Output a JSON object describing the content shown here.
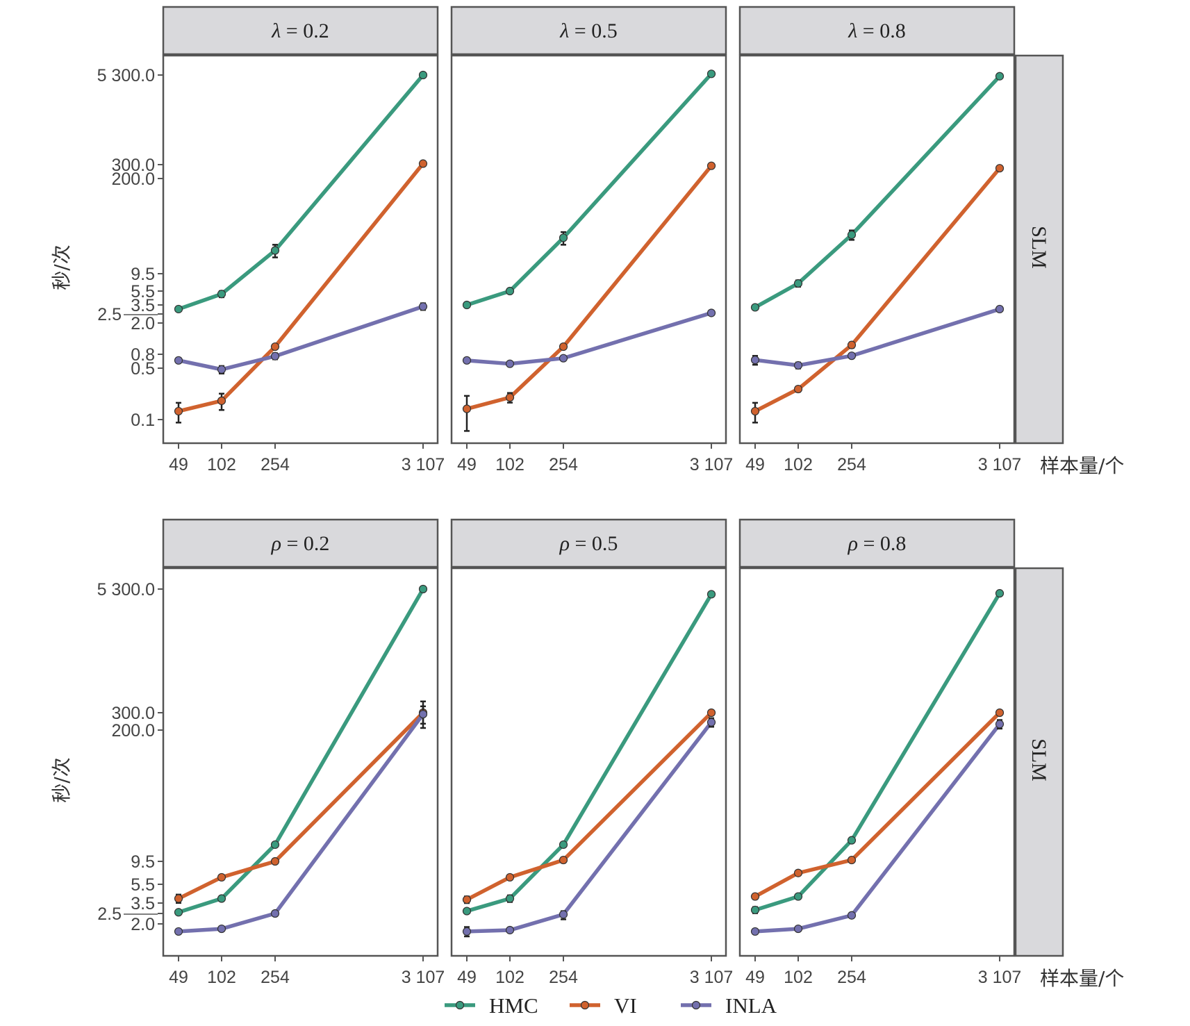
{
  "chart_data": {
    "type": "line",
    "ylabel": "秒/次",
    "xlabel": "样本量/个",
    "x_ticks": [
      "49",
      "102",
      "254",
      "3 107"
    ],
    "x_values": [
      49,
      102,
      254,
      3107
    ],
    "row_label": "SLM",
    "legend_position": "bottom",
    "series_colors": {
      "HMC": "#3a9a7e",
      "VI": "#d0622e",
      "INLA": "#7370ae"
    },
    "legend": [
      "HMC",
      "VI",
      "INLA"
    ],
    "panels": [
      {
        "greek": "λ",
        "param": "= 0.2",
        "row": 0,
        "col": 0,
        "y_ticks": [
          "5 300.0",
          "300.0",
          "200.0",
          "9.5",
          "5.5",
          "3.5",
          "2.5",
          "2.0",
          "0.8",
          "0.5",
          "0.1"
        ],
        "series": [
          {
            "name": "HMC",
            "values": [
              3.0,
              5.0,
              20.0,
              5300
            ],
            "err": [
              0.05,
              0.1,
              0.2,
              0.05
            ]
          },
          {
            "name": "VI",
            "values": [
              0.13,
              0.18,
              1.0,
              310
            ],
            "err": [
              0.3,
              0.25,
              0.05,
              0.05
            ]
          },
          {
            "name": "INLA",
            "values": [
              0.65,
              0.48,
              0.75,
              3.3
            ],
            "err": [
              0.05,
              0.12,
              0.1,
              0.12
            ]
          }
        ]
      },
      {
        "greek": "λ",
        "param": "= 0.5",
        "row": 0,
        "col": 1,
        "y_ticks": [],
        "series": [
          {
            "name": "HMC",
            "values": [
              3.5,
              5.5,
              30.0,
              5500
            ],
            "err": [
              0.05,
              0.05,
              0.2,
              0.05
            ]
          },
          {
            "name": "VI",
            "values": [
              0.14,
              0.2,
              1.0,
              290
            ],
            "err": [
              0.5,
              0.15,
              0.05,
              0.05
            ]
          },
          {
            "name": "INLA",
            "values": [
              0.65,
              0.58,
              0.7,
              2.6
            ],
            "err": [
              0.05,
              0.08,
              0.08,
              0.05
            ]
          }
        ]
      },
      {
        "greek": "λ",
        "param": "= 0.8",
        "row": 0,
        "col": 2,
        "y_ticks": [],
        "series": [
          {
            "name": "HMC",
            "values": [
              3.2,
              7.0,
              33.0,
              5100
            ],
            "err": [
              0.05,
              0.1,
              0.15,
              0.05
            ]
          },
          {
            "name": "VI",
            "values": [
              0.13,
              0.26,
              1.05,
              270
            ],
            "err": [
              0.3,
              0.08,
              0.08,
              0.05
            ]
          },
          {
            "name": "INLA",
            "values": [
              0.66,
              0.55,
              0.76,
              3.0
            ],
            "err": [
              0.15,
              0.1,
              0.08,
              0.05
            ]
          }
        ]
      },
      {
        "greek": "ρ",
        "param": "= 0.2",
        "row": 1,
        "col": 0,
        "y_ticks": [
          "5 300.0",
          "300.0",
          "200.0",
          "9.5",
          "5.5",
          "3.5",
          "2.5",
          "2.0"
        ],
        "series": [
          {
            "name": "HMC",
            "values": [
              2.6,
              3.9,
              14.0,
              5300
            ],
            "err": [
              0.04,
              0.05,
              0.05,
              0.02
            ]
          },
          {
            "name": "VI",
            "values": [
              3.9,
              6.5,
              9.5,
              300
            ],
            "err": [
              0.1,
              0.05,
              0.05,
              0.3
            ]
          },
          {
            "name": "INLA",
            "values": [
              1.7,
              1.8,
              2.5,
              290
            ],
            "err": [
              0.04,
              0.03,
              0.05,
              0.2
            ]
          }
        ]
      },
      {
        "greek": "ρ",
        "param": "= 0.5",
        "row": 1,
        "col": 1,
        "y_ticks": [],
        "series": [
          {
            "name": "HMC",
            "values": [
              2.7,
              3.9,
              14.0,
              4700
            ],
            "err": [
              0.05,
              0.08,
              0.05,
              0.03
            ]
          },
          {
            "name": "VI",
            "values": [
              3.8,
              6.5,
              9.8,
              300
            ],
            "err": [
              0.08,
              0.05,
              0.06,
              0.05
            ]
          },
          {
            "name": "INLA",
            "values": [
              1.7,
              1.75,
              2.45,
              240
            ],
            "err": [
              0.1,
              0.05,
              0.1,
              0.1
            ]
          }
        ]
      },
      {
        "greek": "ρ",
        "param": "= 0.8",
        "row": 1,
        "col": 2,
        "y_ticks": [],
        "series": [
          {
            "name": "HMC",
            "values": [
              2.8,
              4.1,
              15.5,
              4800
            ],
            "err": [
              0.1,
              0.05,
              0.05,
              0.03
            ]
          },
          {
            "name": "VI",
            "values": [
              4.1,
              7.2,
              9.8,
              300
            ],
            "err": [
              0.06,
              0.05,
              0.05,
              0.05
            ]
          },
          {
            "name": "INLA",
            "values": [
              1.7,
              1.8,
              2.4,
              230
            ],
            "err": [
              0.05,
              0.03,
              0.05,
              0.1
            ]
          }
        ]
      }
    ]
  }
}
